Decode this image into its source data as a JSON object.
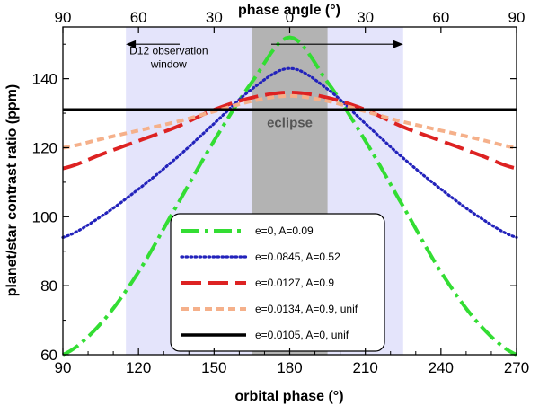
{
  "chart_data": {
    "type": "line",
    "title": "",
    "xlabel": "orbital phase (°)",
    "ylabel": "planet/star contrast ratio (ppm)",
    "top_xlabel": "phase angle (°)",
    "xlim": [
      90,
      270
    ],
    "ylim": [
      60,
      155
    ],
    "x_ticks": [
      90,
      120,
      150,
      180,
      210,
      240,
      270
    ],
    "y_ticks": [
      60,
      80,
      100,
      120,
      140
    ],
    "top_ticks": [
      {
        "at": 90,
        "label": "90"
      },
      {
        "at": 120,
        "label": "60"
      },
      {
        "at": 150,
        "label": "30"
      },
      {
        "at": 180,
        "label": "0"
      },
      {
        "at": 210,
        "label": "30"
      },
      {
        "at": 240,
        "label": "60"
      },
      {
        "at": 270,
        "label": "90"
      }
    ],
    "regions": [
      {
        "name": "observation-window",
        "x": [
          115,
          225
        ],
        "color": "#e4e4fb"
      },
      {
        "name": "eclipse",
        "x": [
          165,
          195
        ],
        "color": "#b3b3b3",
        "label": "eclipse",
        "label_x": 180,
        "label_y": 126
      }
    ],
    "annotations": [
      {
        "name": "observation-window-label",
        "lines": [
          "D12 observation",
          "window"
        ],
        "x": 132,
        "y": 147
      },
      {
        "name": "observation-window-arrow",
        "x": [
          115,
          225
        ],
        "y": 150
      }
    ],
    "series": [
      {
        "name": "e=0, A=0.09",
        "color": "#33dd33",
        "dash": "dashdot",
        "x": [
          90,
          105,
          120,
          135,
          150,
          165,
          180,
          195,
          210,
          225,
          240,
          255,
          270
        ],
        "values": [
          60,
          69,
          84,
          103,
          122,
          139,
          152,
          139,
          122,
          103,
          84,
          69,
          60
        ]
      },
      {
        "name": "e=0.0845, A=0.52",
        "color": "#2222bb",
        "dash": "dotted",
        "x": [
          90,
          105,
          120,
          135,
          150,
          165,
          180,
          195,
          210,
          225,
          240,
          255,
          270
        ],
        "values": [
          94,
          100,
          108,
          117,
          127,
          137,
          143,
          137,
          127,
          117,
          108,
          100,
          94
        ]
      },
      {
        "name": "e=0.0127, A=0.9",
        "color": "#dd2222",
        "dash": "longdash",
        "x": [
          90,
          105,
          120,
          135,
          150,
          165,
          180,
          195,
          210,
          225,
          240,
          255,
          270
        ],
        "values": [
          114,
          118,
          122,
          126,
          131,
          134.5,
          136,
          134.5,
          131,
          126,
          122,
          118,
          114
        ]
      },
      {
        "name": "e=0.0134, A=0.9, unif",
        "color": "#f5b08a",
        "dash": "dashed",
        "x": [
          90,
          105,
          120,
          135,
          150,
          165,
          180,
          195,
          210,
          225,
          240,
          255,
          270
        ],
        "values": [
          120,
          122.5,
          125,
          127.5,
          130.5,
          133.5,
          135,
          133.5,
          130.5,
          127.5,
          125,
          122.5,
          120
        ]
      },
      {
        "name": "e=0.0105, A=0, unif",
        "color": "#000000",
        "dash": "solid",
        "x": [
          90,
          270
        ],
        "values": [
          131,
          131
        ]
      }
    ],
    "legend": {
      "placement": "lower-center"
    },
    "grid": false
  }
}
